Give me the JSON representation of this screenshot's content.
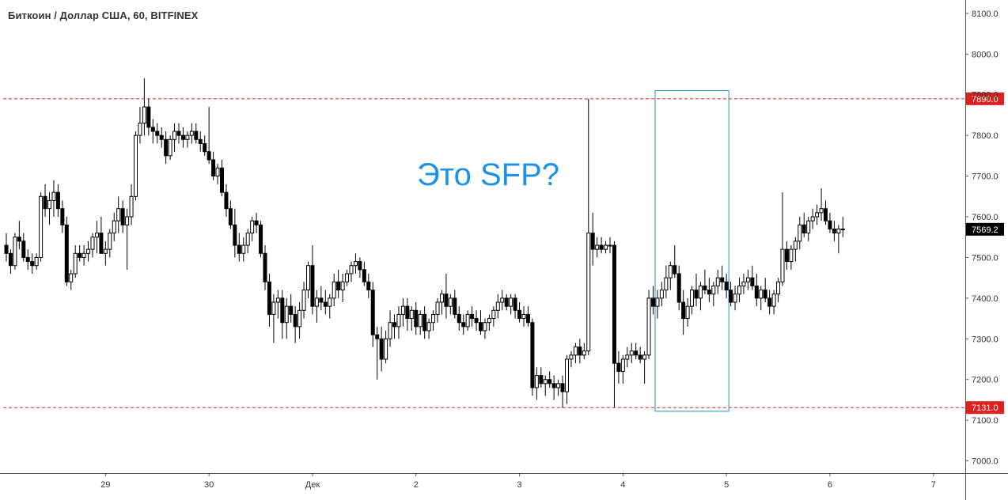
{
  "title": "Биткоин / Доллар США, 60, BITFINEX",
  "annotation": "Это SFP?",
  "colors": {
    "up": "#ffffff",
    "down": "#000000",
    "wick": "#000000",
    "level": "#e01f1f",
    "annotation": "#1e90e6",
    "box": "#2a8fc0",
    "last_price_bg": "#000000"
  },
  "chart_data": {
    "type": "candlestick",
    "title": "Биткоин / Доллар США, 60, BITFINEX",
    "ylim": [
      6970,
      8125
    ],
    "ylabel": "",
    "xlabel": "",
    "y_ticks": [
      "8100.0",
      "8000.0",
      "7900.0",
      "7800.0",
      "7700.0",
      "7600.0",
      "7500.0",
      "7400.0",
      "7300.0",
      "7200.0",
      "7100.0",
      "7000.0"
    ],
    "x_ticks": [
      {
        "label": "29",
        "time": 23
      },
      {
        "label": "30",
        "time": 47
      },
      {
        "label": "Дек",
        "time": 71
      },
      {
        "label": "2",
        "time": 95
      },
      {
        "label": "3",
        "time": 119
      },
      {
        "label": "4",
        "time": 143
      },
      {
        "label": "5",
        "time": 167
      },
      {
        "label": "6",
        "time": 191
      },
      {
        "label": "7",
        "time": 215
      }
    ],
    "levels": [
      {
        "price": 7890.0,
        "label": "7890.0"
      },
      {
        "price": 7131.0,
        "label": "7131.0"
      }
    ],
    "last_price": {
      "price": 7569.2,
      "label": "7569.2"
    },
    "highlight_box": {
      "time_start": 151,
      "time_end": 167,
      "price_low": 7122,
      "price_high": 7910
    },
    "ohlc": [
      [
        7530,
        7560,
        7490,
        7510
      ],
      [
        7510,
        7520,
        7460,
        7480
      ],
      [
        7480,
        7560,
        7470,
        7550
      ],
      [
        7550,
        7590,
        7520,
        7540
      ],
      [
        7540,
        7560,
        7490,
        7500
      ],
      [
        7500,
        7520,
        7470,
        7490
      ],
      [
        7490,
        7510,
        7460,
        7480
      ],
      [
        7480,
        7510,
        7470,
        7500
      ],
      [
        7500,
        7660,
        7490,
        7650
      ],
      [
        7650,
        7680,
        7600,
        7620
      ],
      [
        7620,
        7660,
        7580,
        7640
      ],
      [
        7640,
        7690,
        7600,
        7660
      ],
      [
        7660,
        7680,
        7600,
        7620
      ],
      [
        7620,
        7640,
        7560,
        7580
      ],
      [
        7580,
        7600,
        7430,
        7440
      ],
      [
        7440,
        7470,
        7420,
        7460
      ],
      [
        7460,
        7530,
        7450,
        7510
      ],
      [
        7510,
        7530,
        7490,
        7500
      ],
      [
        7500,
        7530,
        7480,
        7510
      ],
      [
        7510,
        7540,
        7490,
        7520
      ],
      [
        7520,
        7560,
        7500,
        7550
      ],
      [
        7550,
        7590,
        7510,
        7560
      ],
      [
        7560,
        7600,
        7520,
        7510
      ],
      [
        7510,
        7540,
        7480,
        7520
      ],
      [
        7520,
        7570,
        7500,
        7560
      ],
      [
        7560,
        7610,
        7540,
        7590
      ],
      [
        7590,
        7650,
        7560,
        7620
      ],
      [
        7620,
        7640,
        7560,
        7580
      ],
      [
        7580,
        7620,
        7470,
        7600
      ],
      [
        7600,
        7680,
        7580,
        7650
      ],
      [
        7650,
        7810,
        7640,
        7800
      ],
      [
        7800,
        7870,
        7780,
        7830
      ],
      [
        7830,
        7940,
        7800,
        7870
      ],
      [
        7870,
        7890,
        7800,
        7820
      ],
      [
        7820,
        7840,
        7780,
        7810
      ],
      [
        7810,
        7830,
        7780,
        7800
      ],
      [
        7800,
        7820,
        7770,
        7790
      ],
      [
        7790,
        7810,
        7730,
        7750
      ],
      [
        7750,
        7800,
        7740,
        7790
      ],
      [
        7790,
        7830,
        7760,
        7810
      ],
      [
        7810,
        7830,
        7780,
        7800
      ],
      [
        7800,
        7820,
        7770,
        7790
      ],
      [
        7790,
        7810,
        7770,
        7800
      ],
      [
        7800,
        7830,
        7780,
        7810
      ],
      [
        7810,
        7830,
        7780,
        7790
      ],
      [
        7790,
        7810,
        7760,
        7780
      ],
      [
        7780,
        7800,
        7750,
        7760
      ],
      [
        7760,
        7870,
        7730,
        7740
      ],
      [
        7740,
        7760,
        7690,
        7700
      ],
      [
        7700,
        7730,
        7680,
        7720
      ],
      [
        7720,
        7740,
        7650,
        7660
      ],
      [
        7660,
        7680,
        7600,
        7620
      ],
      [
        7620,
        7640,
        7570,
        7580
      ],
      [
        7580,
        7620,
        7500,
        7530
      ],
      [
        7530,
        7560,
        7490,
        7510
      ],
      [
        7510,
        7550,
        7490,
        7530
      ],
      [
        7530,
        7570,
        7510,
        7560
      ],
      [
        7560,
        7600,
        7540,
        7590
      ],
      [
        7590,
        7610,
        7560,
        7580
      ],
      [
        7580,
        7590,
        7500,
        7510
      ],
      [
        7510,
        7530,
        7420,
        7440
      ],
      [
        7440,
        7460,
        7330,
        7360
      ],
      [
        7360,
        7410,
        7290,
        7390
      ],
      [
        7390,
        7420,
        7350,
        7400
      ],
      [
        7400,
        7420,
        7300,
        7340
      ],
      [
        7340,
        7400,
        7300,
        7380
      ],
      [
        7380,
        7410,
        7340,
        7360
      ],
      [
        7360,
        7380,
        7290,
        7330
      ],
      [
        7330,
        7390,
        7300,
        7370
      ],
      [
        7370,
        7440,
        7350,
        7420
      ],
      [
        7420,
        7490,
        7400,
        7480
      ],
      [
        7480,
        7530,
        7360,
        7380
      ],
      [
        7380,
        7420,
        7340,
        7400
      ],
      [
        7400,
        7430,
        7370,
        7390
      ],
      [
        7390,
        7420,
        7360,
        7380
      ],
      [
        7380,
        7410,
        7350,
        7400
      ],
      [
        7400,
        7460,
        7380,
        7440
      ],
      [
        7440,
        7470,
        7400,
        7420
      ],
      [
        7420,
        7460,
        7390,
        7440
      ],
      [
        7440,
        7470,
        7430,
        7460
      ],
      [
        7460,
        7490,
        7440,
        7480
      ],
      [
        7480,
        7510,
        7460,
        7490
      ],
      [
        7490,
        7500,
        7450,
        7470
      ],
      [
        7470,
        7490,
        7430,
        7440
      ],
      [
        7440,
        7460,
        7400,
        7420
      ],
      [
        7420,
        7440,
        7280,
        7310
      ],
      [
        7310,
        7330,
        7200,
        7300
      ],
      [
        7300,
        7330,
        7220,
        7250
      ],
      [
        7250,
        7320,
        7240,
        7300
      ],
      [
        7300,
        7370,
        7280,
        7340
      ],
      [
        7340,
        7360,
        7300,
        7330
      ],
      [
        7330,
        7380,
        7300,
        7360
      ],
      [
        7360,
        7400,
        7330,
        7380
      ],
      [
        7380,
        7400,
        7320,
        7350
      ],
      [
        7350,
        7380,
        7320,
        7370
      ],
      [
        7370,
        7390,
        7310,
        7330
      ],
      [
        7330,
        7370,
        7310,
        7360
      ],
      [
        7360,
        7380,
        7300,
        7320
      ],
      [
        7320,
        7350,
        7300,
        7340
      ],
      [
        7340,
        7370,
        7320,
        7360
      ],
      [
        7360,
        7400,
        7340,
        7390
      ],
      [
        7390,
        7420,
        7360,
        7410
      ],
      [
        7410,
        7460,
        7350,
        7380
      ],
      [
        7380,
        7410,
        7360,
        7400
      ],
      [
        7400,
        7420,
        7350,
        7360
      ],
      [
        7360,
        7380,
        7320,
        7340
      ],
      [
        7340,
        7360,
        7310,
        7330
      ],
      [
        7330,
        7370,
        7320,
        7360
      ],
      [
        7360,
        7380,
        7330,
        7350
      ],
      [
        7350,
        7370,
        7320,
        7340
      ],
      [
        7340,
        7370,
        7310,
        7320
      ],
      [
        7320,
        7350,
        7300,
        7340
      ],
      [
        7340,
        7360,
        7320,
        7350
      ],
      [
        7350,
        7380,
        7330,
        7370
      ],
      [
        7370,
        7410,
        7350,
        7390
      ],
      [
        7390,
        7420,
        7370,
        7400
      ],
      [
        7400,
        7410,
        7370,
        7380
      ],
      [
        7380,
        7410,
        7360,
        7400
      ],
      [
        7400,
        7410,
        7350,
        7370
      ],
      [
        7370,
        7390,
        7340,
        7350
      ],
      [
        7350,
        7380,
        7330,
        7360
      ],
      [
        7360,
        7380,
        7330,
        7340
      ],
      [
        7340,
        7350,
        7160,
        7180
      ],
      [
        7180,
        7230,
        7150,
        7210
      ],
      [
        7210,
        7230,
        7180,
        7190
      ],
      [
        7190,
        7210,
        7160,
        7200
      ],
      [
        7200,
        7220,
        7180,
        7190
      ],
      [
        7190,
        7210,
        7150,
        7180
      ],
      [
        7180,
        7200,
        7160,
        7190
      ],
      [
        7190,
        7210,
        7130,
        7170
      ],
      [
        7170,
        7260,
        7140,
        7250
      ],
      [
        7250,
        7270,
        7230,
        7260
      ],
      [
        7260,
        7290,
        7240,
        7280
      ],
      [
        7280,
        7300,
        7240,
        7260
      ],
      [
        7260,
        7290,
        7250,
        7270
      ],
      [
        7270,
        7890,
        7260,
        7560
      ],
      [
        7560,
        7610,
        7480,
        7520
      ],
      [
        7520,
        7550,
        7500,
        7530
      ],
      [
        7530,
        7550,
        7510,
        7520
      ],
      [
        7520,
        7540,
        7510,
        7530
      ],
      [
        7530,
        7550,
        7510,
        7530
      ],
      [
        7530,
        7540,
        7131,
        7240
      ],
      [
        7240,
        7270,
        7190,
        7220
      ],
      [
        7220,
        7260,
        7190,
        7250
      ],
      [
        7250,
        7280,
        7230,
        7260
      ],
      [
        7260,
        7290,
        7240,
        7270
      ],
      [
        7270,
        7290,
        7250,
        7260
      ],
      [
        7260,
        7280,
        7240,
        7250
      ],
      [
        7250,
        7270,
        7190,
        7260
      ],
      [
        7260,
        7420,
        7250,
        7400
      ],
      [
        7400,
        7430,
        7360,
        7380
      ],
      [
        7380,
        7420,
        7350,
        7400
      ],
      [
        7400,
        7440,
        7380,
        7420
      ],
      [
        7420,
        7480,
        7400,
        7450
      ],
      [
        7450,
        7490,
        7420,
        7480
      ],
      [
        7480,
        7530,
        7450,
        7460
      ],
      [
        7460,
        7480,
        7370,
        7390
      ],
      [
        7390,
        7420,
        7310,
        7350
      ],
      [
        7350,
        7400,
        7330,
        7380
      ],
      [
        7380,
        7430,
        7360,
        7420
      ],
      [
        7420,
        7460,
        7380,
        7400
      ],
      [
        7400,
        7440,
        7370,
        7430
      ],
      [
        7430,
        7470,
        7410,
        7420
      ],
      [
        7420,
        7450,
        7390,
        7410
      ],
      [
        7410,
        7440,
        7380,
        7430
      ],
      [
        7430,
        7470,
        7410,
        7450
      ],
      [
        7450,
        7480,
        7420,
        7440
      ],
      [
        7440,
        7460,
        7400,
        7420
      ],
      [
        7420,
        7440,
        7380,
        7390
      ],
      [
        7390,
        7430,
        7370,
        7410
      ],
      [
        7410,
        7450,
        7390,
        7430
      ],
      [
        7430,
        7460,
        7410,
        7440
      ],
      [
        7440,
        7470,
        7420,
        7450
      ],
      [
        7450,
        7480,
        7420,
        7430
      ],
      [
        7430,
        7460,
        7380,
        7400
      ],
      [
        7400,
        7430,
        7370,
        7420
      ],
      [
        7420,
        7450,
        7390,
        7400
      ],
      [
        7400,
        7420,
        7360,
        7380
      ],
      [
        7380,
        7420,
        7360,
        7410
      ],
      [
        7410,
        7450,
        7390,
        7440
      ],
      [
        7440,
        7660,
        7430,
        7520
      ],
      [
        7520,
        7540,
        7470,
        7490
      ],
      [
        7490,
        7530,
        7470,
        7520
      ],
      [
        7520,
        7550,
        7490,
        7540
      ],
      [
        7540,
        7600,
        7520,
        7580
      ],
      [
        7580,
        7610,
        7550,
        7560
      ],
      [
        7560,
        7600,
        7540,
        7590
      ],
      [
        7590,
        7620,
        7570,
        7600
      ],
      [
        7600,
        7630,
        7580,
        7610
      ],
      [
        7610,
        7670,
        7590,
        7620
      ],
      [
        7620,
        7640,
        7580,
        7590
      ],
      [
        7590,
        7610,
        7560,
        7570
      ],
      [
        7570,
        7590,
        7540,
        7560
      ],
      [
        7560,
        7580,
        7510,
        7570
      ],
      [
        7570,
        7600,
        7550,
        7569.2
      ]
    ]
  }
}
